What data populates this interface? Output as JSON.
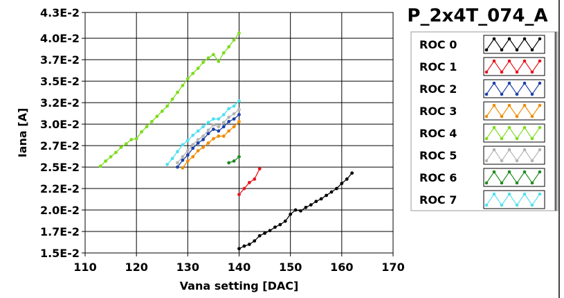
{
  "chart_data": {
    "type": "line",
    "title": "P_2x4T_074_A",
    "xlabel": "Vana setting [DAC]",
    "ylabel": "Iana [A]",
    "xlim": [
      110,
      170
    ],
    "ylim": [
      0.015,
      0.043
    ],
    "x_ticks": [
      "110",
      "120",
      "130",
      "140",
      "150",
      "160",
      "170"
    ],
    "y_ticks": [
      "1.5E-2",
      "1.7E-2",
      "2.0E-2",
      "2.2E-2",
      "2.5E-2",
      "2.7E-2",
      "3.0E-2",
      "3.2E-2",
      "3.5E-2",
      "3.7E-2",
      "4.0E-2",
      "4.3E-2"
    ],
    "y_tick_values": [
      0.015,
      0.0175,
      0.02,
      0.0225,
      0.025,
      0.0275,
      0.03,
      0.0325,
      0.035,
      0.0375,
      0.04,
      0.043
    ],
    "grid": true,
    "legend_position": "right",
    "series": [
      {
        "name": "ROC 0",
        "color": "#000000",
        "x": [
          140,
          141,
          142,
          143,
          144,
          145,
          146,
          147,
          148,
          149,
          150,
          151,
          152,
          153,
          154,
          155,
          156,
          157,
          158,
          159,
          160,
          161,
          162
        ],
        "y": [
          0.0155,
          0.0158,
          0.016,
          0.0164,
          0.017,
          0.0173,
          0.0176,
          0.018,
          0.0183,
          0.0187,
          0.0195,
          0.02,
          0.0199,
          0.0203,
          0.0206,
          0.021,
          0.0213,
          0.0217,
          0.0221,
          0.0225,
          0.0231,
          0.0236,
          0.0243
        ]
      },
      {
        "name": "ROC 1",
        "color": "#e8141c",
        "x": [
          140,
          141,
          142,
          143,
          144
        ],
        "y": [
          0.0218,
          0.0225,
          0.0232,
          0.0236,
          0.0248
        ]
      },
      {
        "name": "ROC 2",
        "color": "#1b3fa8",
        "x": [
          128,
          129,
          130,
          131,
          132,
          133,
          134,
          135,
          136,
          137,
          138,
          139,
          140
        ],
        "y": [
          0.025,
          0.0258,
          0.0264,
          0.0272,
          0.0278,
          0.0282,
          0.0289,
          0.0294,
          0.0292,
          0.0297,
          0.0303,
          0.0306,
          0.0311
        ]
      },
      {
        "name": "ROC 3",
        "color": "#f08c00",
        "x": [
          129,
          130,
          131,
          132,
          133,
          134,
          135,
          136,
          137,
          138,
          139,
          140
        ],
        "y": [
          0.0249,
          0.0257,
          0.0262,
          0.0269,
          0.0273,
          0.0278,
          0.0283,
          0.0286,
          0.0286,
          0.0292,
          0.0297,
          0.0303
        ]
      },
      {
        "name": "ROC 4",
        "color": "#7ddc1f",
        "x": [
          113,
          114,
          115,
          116,
          117,
          118,
          119,
          120,
          121,
          122,
          123,
          124,
          125,
          126,
          127,
          128,
          129,
          130,
          131,
          132,
          133,
          134,
          135,
          136,
          137,
          138,
          139,
          140
        ],
        "y": [
          0.0251,
          0.0257,
          0.0262,
          0.0267,
          0.0273,
          0.0277,
          0.0282,
          0.0283,
          0.0291,
          0.0297,
          0.0303,
          0.0309,
          0.0315,
          0.0321,
          0.0329,
          0.0337,
          0.0345,
          0.0353,
          0.0359,
          0.0365,
          0.0372,
          0.0377,
          0.0381,
          0.0373,
          0.0383,
          0.039,
          0.0398,
          0.0406
        ]
      },
      {
        "name": "ROC 5",
        "color": "#b4b4b4",
        "x": [
          128,
          129,
          130,
          131,
          132,
          133,
          134,
          135,
          136,
          137,
          138,
          139,
          140
        ],
        "y": [
          0.0255,
          0.0262,
          0.0269,
          0.0276,
          0.0282,
          0.0286,
          0.0293,
          0.0299,
          0.0297,
          0.0302,
          0.0308,
          0.0312,
          0.0317
        ]
      },
      {
        "name": "ROC 6",
        "color": "#1e8c1e",
        "x": [
          138,
          139,
          140
        ],
        "y": [
          0.0255,
          0.0257,
          0.0262
        ]
      },
      {
        "name": "ROC 7",
        "color": "#50e0f0",
        "x": [
          126,
          127,
          128,
          129,
          130,
          131,
          132,
          133,
          134,
          135,
          136,
          137,
          138,
          139,
          140
        ],
        "y": [
          0.0253,
          0.026,
          0.0268,
          0.0276,
          0.0281,
          0.0287,
          0.0292,
          0.0297,
          0.0302,
          0.0306,
          0.0306,
          0.0311,
          0.0318,
          0.0321,
          0.0327
        ]
      }
    ]
  }
}
